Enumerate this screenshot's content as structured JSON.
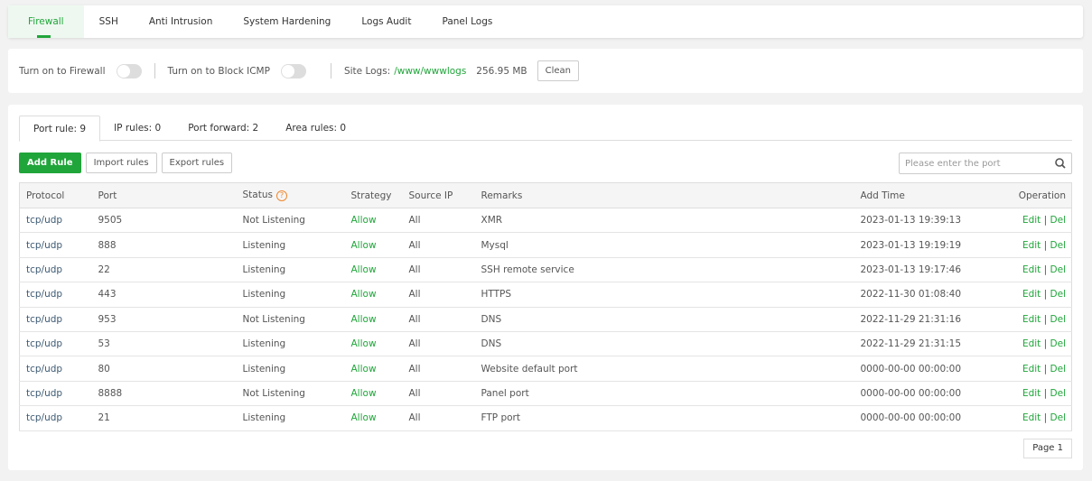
{
  "nav": {
    "tabs": [
      "Firewall",
      "SSH",
      "Anti Intrusion",
      "System Hardening",
      "Logs Audit",
      "Panel Logs"
    ],
    "active": 0
  },
  "controls": {
    "firewall_label": "Turn on to Firewall",
    "firewall_on": false,
    "icmp_label": "Turn on to Block ICMP",
    "icmp_on": false,
    "site_logs_label": "Site Logs:",
    "site_logs_path": "/www/wwwlogs",
    "site_logs_size": "256.95 MB",
    "clean_label": "Clean"
  },
  "subtabs": [
    "Port rule: 9",
    "IP rules: 0",
    "Port forward: 2",
    "Area rules: 0"
  ],
  "toolbar": {
    "add": "Add Rule",
    "import": "Import rules",
    "export": "Export rules",
    "search_placeholder": "Please enter the port"
  },
  "table": {
    "headers": [
      "Protocol",
      "Port",
      "Status",
      "Strategy",
      "Source IP",
      "Remarks",
      "Add Time",
      "Operation"
    ],
    "rows": [
      [
        "tcp/udp",
        "9505",
        "Not Listening",
        "Allow",
        "All",
        "XMR",
        "2023-01-13 19:39:13"
      ],
      [
        "tcp/udp",
        "888",
        "Listening",
        "Allow",
        "All",
        "Mysql",
        "2023-01-13 19:19:19"
      ],
      [
        "tcp/udp",
        "22",
        "Listening",
        "Allow",
        "All",
        "SSH remote service",
        "2023-01-13 19:17:46"
      ],
      [
        "tcp/udp",
        "443",
        "Listening",
        "Allow",
        "All",
        "HTTPS",
        "2022-11-30 01:08:40"
      ],
      [
        "tcp/udp",
        "953",
        "Not Listening",
        "Allow",
        "All",
        "DNS",
        "2022-11-29 21:31:16"
      ],
      [
        "tcp/udp",
        "53",
        "Listening",
        "Allow",
        "All",
        "DNS",
        "2022-11-29 21:31:15"
      ],
      [
        "tcp/udp",
        "80",
        "Listening",
        "Allow",
        "All",
        "Website default port",
        "0000-00-00 00:00:00"
      ],
      [
        "tcp/udp",
        "8888",
        "Not Listening",
        "Allow",
        "All",
        "Panel port",
        "0000-00-00 00:00:00"
      ],
      [
        "tcp/udp",
        "21",
        "Listening",
        "Allow",
        "All",
        "FTP port",
        "0000-00-00 00:00:00"
      ]
    ],
    "edit": "Edit",
    "sep": "|",
    "del": "Del"
  },
  "pager": {
    "label": "Page 1"
  },
  "colors": {
    "accent": "#20a53a",
    "help": "#f0882f"
  }
}
